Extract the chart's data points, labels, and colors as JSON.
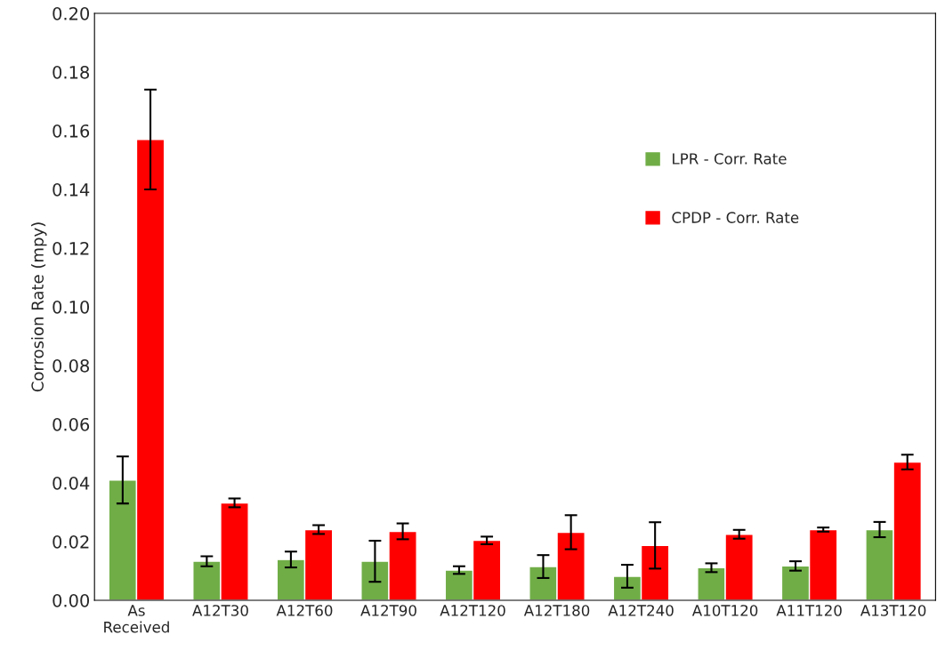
{
  "chart_data": {
    "type": "bar",
    "ylabel": "Corrosion Rate (mpy)",
    "categories": [
      "As\nReceived",
      "A12T30",
      "A12T60",
      "A12T90",
      "A12T120",
      "A12T180",
      "A12T240",
      "A10T120",
      "A11T120",
      "A13T120"
    ],
    "series": [
      {
        "name": "LPR - Corr. Rate",
        "color": "#70ad47",
        "values": [
          0.041,
          0.0133,
          0.0139,
          0.0133,
          0.0103,
          0.0115,
          0.0082,
          0.0111,
          0.0117,
          0.0241
        ],
        "errors": [
          0.008,
          0.0017,
          0.0027,
          0.007,
          0.0013,
          0.0039,
          0.0039,
          0.0015,
          0.0016,
          0.0026
        ]
      },
      {
        "name": "CPDP - Corr. Rate",
        "color": "#ff0000",
        "values": [
          0.157,
          0.0332,
          0.0241,
          0.0235,
          0.0204,
          0.0232,
          0.0187,
          0.0225,
          0.0241,
          0.0471
        ],
        "errors": [
          0.017,
          0.0015,
          0.0015,
          0.0027,
          0.0013,
          0.0058,
          0.0079,
          0.0015,
          0.0007,
          0.0025
        ]
      }
    ],
    "ylim": [
      0,
      0.2
    ],
    "yticks": [
      {
        "value": 0,
        "label": "0.00"
      },
      {
        "value": 0.02,
        "label": "0.02"
      },
      {
        "value": 0.04,
        "label": "0.04"
      },
      {
        "value": 0.06,
        "label": "0.06"
      },
      {
        "value": 0.08,
        "label": "0.08"
      },
      {
        "value": 0.1,
        "label": "0.10"
      },
      {
        "value": 0.12,
        "label": "0.12"
      },
      {
        "value": 0.14,
        "label": "0.14"
      },
      {
        "value": 0.16,
        "label": "0.16"
      },
      {
        "value": 0.18,
        "label": "0.18"
      },
      {
        "value": 0.2,
        "label": "0.20"
      }
    ],
    "grid": false,
    "legend": "right"
  }
}
